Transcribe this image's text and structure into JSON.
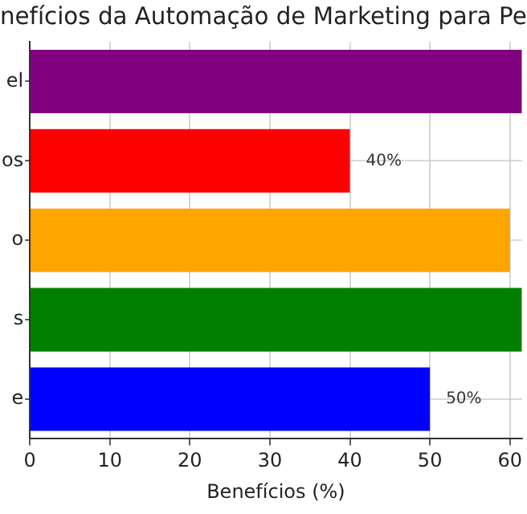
{
  "chart_data": {
    "type": "bar",
    "orientation": "horizontal",
    "title": "nefícios da Automação de Marketing para Pe",
    "xlabel": "Benefícios (%)",
    "categories": [
      "el",
      "os",
      "o",
      "s",
      "e"
    ],
    "values": [
      61.5,
      40,
      60,
      61.5,
      50
    ],
    "colors": [
      "#800080",
      "#ff0000",
      "#ffa500",
      "#008000",
      "#0000ff"
    ],
    "value_labels": [
      null,
      "40%",
      null,
      null,
      "50%"
    ],
    "xlim": [
      0,
      61.5
    ],
    "xticks": [
      0,
      10,
      20,
      30,
      40,
      50,
      60
    ],
    "grid": true
  }
}
